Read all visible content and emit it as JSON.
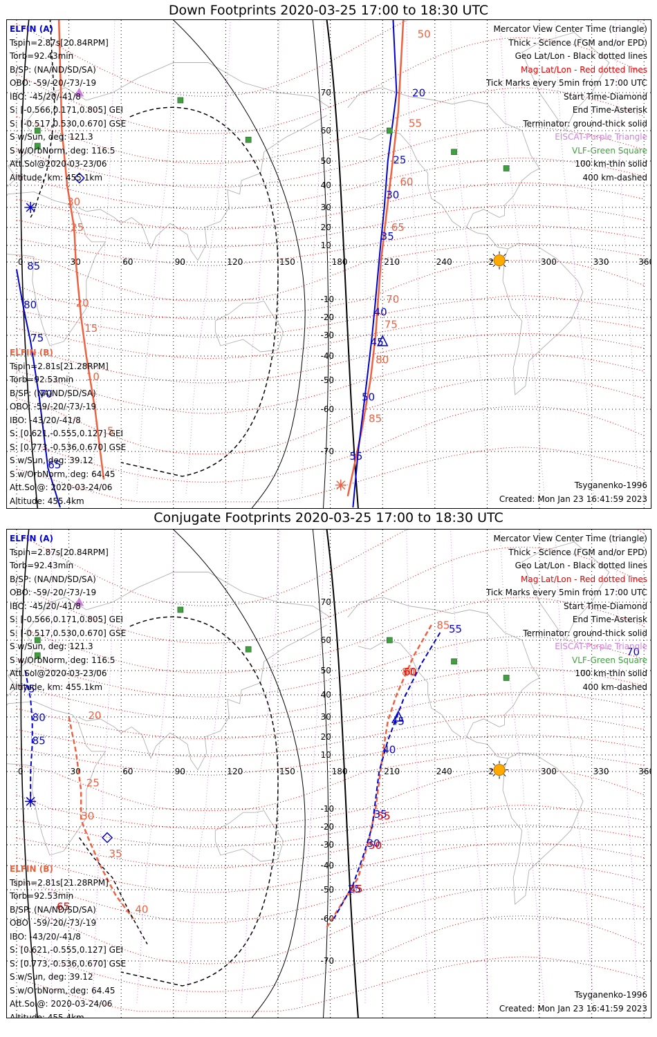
{
  "panels": [
    {
      "title": "Down Footprints 2020-03-25 17:00 to 18:30 UTC",
      "elfin_a": {
        "header": "ELFIN (A)",
        "lines": [
          "Tspin=2.87s[20.84RPM]",
          "Torb=92.43min",
          "B/SP: (NA/ND/SD/SA)",
          "OBO: -59/-20/-73/-19",
          "IBO: -45/20/-41/8",
          "S: [-0.566,0.171,0.805] GEI",
          "S: [-0.517,0.530,0.670] GSE",
          "S w/Sun, deg: 121.3",
          "S w/OrbNorm, deg: 116.5",
          "Att.Sol@2020-03-23/06",
          "Altitude, km: 455.1km"
        ]
      },
      "elfin_b": {
        "header": "ELFIN (B)",
        "lines": [
          "Tspin=2.81s[21.28RPM]",
          "Torb=92.53min",
          "B/SP: (NA/ND/SD/SA)",
          "OBO: -59/-20/-73/-19",
          "IBO: -43/20/-41/8",
          "S: [0.621,-0.555,0.127] GEI",
          "S: [0.773,-0.536,0.670] GSE",
          "S w/Sun, deg: 39.12",
          "S w/OrbNorm, deg: 64.45",
          "Att.Sol@: 2020-03-24/06",
          "Altitude: 455.4km"
        ]
      },
      "legend": [
        "Mercator View Center Time (triangle)",
        "Thick - Science (FGM and/or EPD)",
        "Geo Lat/Lon - Black dotted lines",
        "Mag Lat/Lon - Red dotted lines",
        "Tick Marks every 5min from 17:00 UTC",
        "Start Time-Diamond",
        "End Time-Asterisk",
        "Terminator: ground-thick solid",
        "EISCAT-Purple Triangle",
        "VLF-Green Square",
        "100 km-thin solid",
        "400 km-dashed"
      ],
      "model": "Tsyganenko-1996",
      "created": "Created: Mon Jan 23 16:41:59 2023",
      "track_labels": {
        "a": [
          {
            "t": "20",
            "lon": 227,
            "lat": 69
          },
          {
            "t": "25",
            "lon": 216,
            "lat": 49
          },
          {
            "t": "30",
            "lon": 212,
            "lat": 34
          },
          {
            "t": "35",
            "lon": 209,
            "lat": 13
          },
          {
            "t": "40",
            "lon": 205,
            "lat": -19
          },
          {
            "t": "45",
            "lon": 203,
            "lat": -35
          },
          {
            "t": "50",
            "lon": 198,
            "lat": -57
          },
          {
            "t": "55",
            "lon": 191,
            "lat": -73
          },
          {
            "t": "85",
            "lon": 6,
            "lat": -2
          },
          {
            "t": "80",
            "lon": 4,
            "lat": -15
          },
          {
            "t": "75",
            "lon": 8,
            "lat": -33
          },
          {
            "t": "70",
            "lon": 13,
            "lat": -56
          },
          {
            "t": "65",
            "lon": 18,
            "lat": -76
          }
        ],
        "b": [
          {
            "t": "50",
            "lon": 230,
            "lat": 81
          },
          {
            "t": "55",
            "lon": 225,
            "lat": 61
          },
          {
            "t": "60",
            "lon": 220,
            "lat": 40
          },
          {
            "t": "65",
            "lon": 215,
            "lat": 18
          },
          {
            "t": "70",
            "lon": 212,
            "lat": -12
          },
          {
            "t": "75",
            "lon": 211,
            "lat": -26
          },
          {
            "t": "80",
            "lon": 206,
            "lat": -43
          },
          {
            "t": "85",
            "lon": 202,
            "lat": -63
          },
          {
            "t": "30",
            "lon": 29,
            "lat": 31
          },
          {
            "t": "25",
            "lon": 31,
            "lat": 18
          },
          {
            "t": "20",
            "lon": 34,
            "lat": -14
          },
          {
            "t": "15",
            "lon": 39,
            "lat": -28
          },
          {
            "t": "10",
            "lon": 40,
            "lat": -50
          },
          {
            "t": "5",
            "lon": 52,
            "lat": -66
          }
        ]
      },
      "start_marker_a": {
        "lon": 36,
        "lat": 43
      },
      "end_marker_a": {
        "lon": 8,
        "lat": 30
      },
      "end_marker_b": {
        "lon": 186,
        "lat": -82
      },
      "center_marker_a": {
        "lon": 210,
        "lat": -33
      },
      "eiscat": {
        "lon": 20,
        "lat": 69
      }
    },
    {
      "title": "Conjugate Footprints 2020-03-25 17:00 to 18:30 UTC",
      "elfin_a": {
        "header": "ELFIN (A)",
        "lines": [
          "Tspin=2.87s[20.84RPM]",
          "Torb=92.43min",
          "B/SP: (NA/ND/SD/SA)",
          "OBO: -59/-20/-73/-19",
          "IBO: -45/20/-41/8",
          "S: [-0.566,0.171,0.805] GEI",
          "S: [-0.517,0.530,0.670] GSE",
          "S w/Sun, deg: 121.3",
          "S w/OrbNorm, deg: 116.5",
          "Att.Sol@2020-03-23/06",
          "Altitude, km: 455.1km"
        ]
      },
      "elfin_b": {
        "header": "ELFIN (B)",
        "lines": [
          "Tspin=2.81s[21.28RPM]",
          "Torb=92.53min",
          "B/SP: (NA/ND/SD/SA)",
          "OBO: -59/-20/-73/-19",
          "IBO: -43/20/-41/8",
          "S: [0.621,-0.555,0.127] GEI",
          "S: [0.773,-0.536,0.670] GSE",
          "S w/Sun, deg: 39.12",
          "S w/OrbNorm, deg: 64.45",
          "Att.Sol@: 2020-03-24/06",
          "Altitude: 455.4km"
        ]
      },
      "legend": [
        "Mercator View Center Time (triangle)",
        "Thick - Science (FGM and/or EPD)",
        "Geo Lat/Lon - Black dotted lines",
        "Mag Lat/Lon - Red dotted lines",
        "Tick Marks every 5min from 17:00 UTC",
        "Start Time-Diamond",
        "End Time-Asterisk",
        "Terminator: ground-thick solid",
        "EISCAT-Purple Triangle",
        "VLF-Green Square",
        "100 km-thin solid",
        "400 km-dashed"
      ],
      "model": "Tsyganenko-1996",
      "created": "Created: Mon Jan 23 16:41:59 2023",
      "track_labels": {
        "a": [
          {
            "t": "55",
            "lon": 248,
            "lat": 62
          },
          {
            "t": "70",
            "lon": 350,
            "lat": 55
          },
          {
            "t": "75",
            "lon": 3,
            "lat": 41
          },
          {
            "t": "80",
            "lon": 9,
            "lat": 28
          },
          {
            "t": "85",
            "lon": 9,
            "lat": 16
          },
          {
            "t": "45",
            "lon": 215,
            "lat": 26
          },
          {
            "t": "40",
            "lon": 210,
            "lat": 11
          },
          {
            "t": "35",
            "lon": 205,
            "lat": -15
          },
          {
            "t": "30",
            "lon": 201,
            "lat": -31
          },
          {
            "t": "25",
            "lon": 190,
            "lat": -51
          }
        ],
        "b": [
          {
            "t": "85",
            "lon": 241,
            "lat": 63
          },
          {
            "t": "80",
            "lon": 221,
            "lat": 48
          },
          {
            "t": "20",
            "lon": 41,
            "lat": 29
          },
          {
            "t": "25",
            "lon": 40,
            "lat": -4
          },
          {
            "t": "30",
            "lon": 37,
            "lat": -16
          },
          {
            "t": "35",
            "lon": 53,
            "lat": -36
          },
          {
            "t": "40",
            "lon": 68,
            "lat": -58
          }
        ],
        "b_plain": [
          {
            "t": "60",
            "lon": 222,
            "lat": 48
          },
          {
            "t": "55",
            "lon": 207,
            "lat": -16
          },
          {
            "t": "50",
            "lon": 202,
            "lat": -32
          },
          {
            "t": "45",
            "lon": 191,
            "lat": -51
          },
          {
            "t": "65",
            "lon": 23,
            "lat": -57
          }
        ]
      },
      "start_marker_a": {
        "lon": 52,
        "lat": -26
      },
      "end_marker_a": {
        "lon": 8,
        "lat": -8
      },
      "center_marker_a": {
        "lon": 219,
        "lat": 30
      },
      "eiscat": {
        "lon": 20,
        "lat": 69
      }
    }
  ],
  "axes": {
    "lon_ticks": [
      "0",
      "30",
      "60",
      "90",
      "120",
      "150",
      "180",
      "210",
      "240",
      "270",
      "300",
      "330",
      "360"
    ],
    "lat_ticks": [
      "70",
      "60",
      "50",
      "40",
      "30",
      "20",
      "10",
      "-10",
      "-20",
      "-30",
      "-40",
      "-50",
      "-60",
      "-70"
    ]
  },
  "vlf_stations": [
    {
      "lon": 12,
      "lat": 60
    },
    {
      "lon": 12,
      "lat": 55
    },
    {
      "lon": 94,
      "lat": 68
    },
    {
      "lon": 133,
      "lat": 57
    },
    {
      "lon": 214,
      "lat": 60
    },
    {
      "lon": 251,
      "lat": 53
    },
    {
      "lon": 281,
      "lat": 47
    }
  ],
  "sun": {
    "lon": 277,
    "lat": 1
  },
  "colors": {
    "elfin_a": "#0000cc",
    "elfin_b": "#ee6040",
    "geo_grid": "#000000",
    "mag_grid": "#e00000",
    "eiscat": "#d080e0",
    "vlf": "#40a040",
    "sun": "#ffaa00",
    "coast": "#b0b0b0"
  }
}
